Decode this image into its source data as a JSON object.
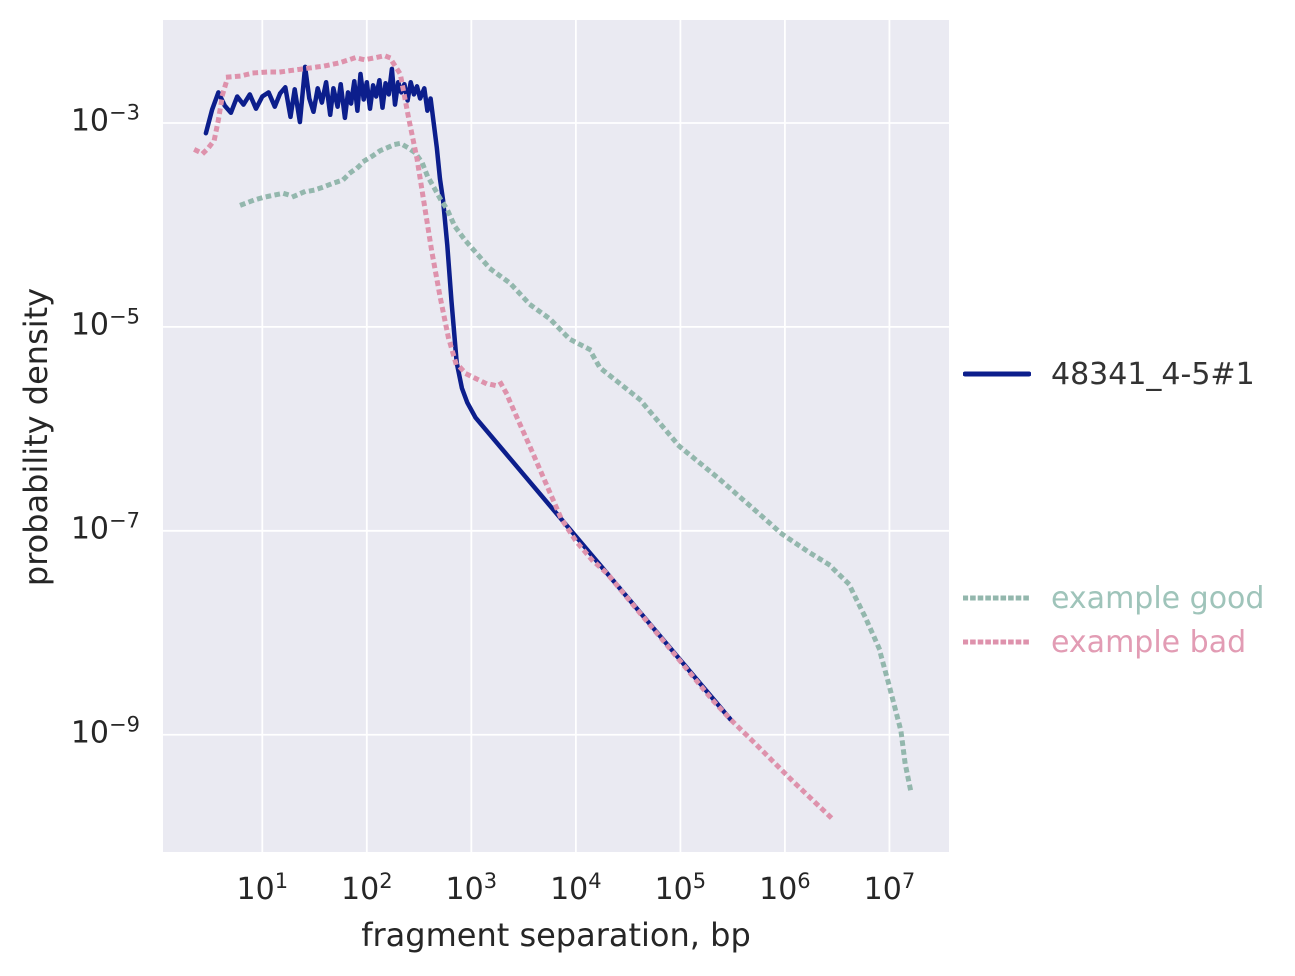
{
  "chart_data": {
    "type": "line",
    "title": "",
    "xlabel": "fragment separation, bp",
    "ylabel": "probability density",
    "x_scale": "log",
    "y_scale": "log",
    "units_note": "series points are [log10(fragment separation in bp), log10(probability density)]",
    "x_log_range": [
      0.05,
      7.57
    ],
    "y_log_range": [
      -10.15,
      -1.99
    ],
    "plot_bg": "#eaeaf2",
    "grid": {
      "color": "#ffffff",
      "x_lines_log": [
        1,
        2,
        3,
        4,
        5,
        6,
        7
      ],
      "y_lines_log": [
        -3,
        -5,
        -7,
        -9
      ]
    },
    "x_ticks": [
      {
        "base": "10",
        "exp": "1",
        "log": 1
      },
      {
        "base": "10",
        "exp": "2",
        "log": 2
      },
      {
        "base": "10",
        "exp": "3",
        "log": 3
      },
      {
        "base": "10",
        "exp": "4",
        "log": 4
      },
      {
        "base": "10",
        "exp": "5",
        "log": 5
      },
      {
        "base": "10",
        "exp": "6",
        "log": 6
      },
      {
        "base": "10",
        "exp": "7",
        "log": 7
      }
    ],
    "y_ticks": [
      {
        "base": "10",
        "exp": "−3",
        "log": -3
      },
      {
        "base": "10",
        "exp": "−5",
        "log": -5
      },
      {
        "base": "10",
        "exp": "−7",
        "log": -7
      },
      {
        "base": "10",
        "exp": "−9",
        "log": -9
      }
    ],
    "series": [
      {
        "id": "sample",
        "label": "48341_4-5#1",
        "color": "#0c1e8c",
        "label_color": "#333333",
        "style": "solid",
        "points_log10": [
          [
            0.46,
            -3.1
          ],
          [
            0.52,
            -2.87
          ],
          [
            0.58,
            -2.7
          ],
          [
            0.64,
            -2.83
          ],
          [
            0.7,
            -2.9
          ],
          [
            0.76,
            -2.74
          ],
          [
            0.82,
            -2.82
          ],
          [
            0.88,
            -2.72
          ],
          [
            0.94,
            -2.86
          ],
          [
            1.0,
            -2.74
          ],
          [
            1.06,
            -2.7
          ],
          [
            1.12,
            -2.84
          ],
          [
            1.17,
            -2.71
          ],
          [
            1.22,
            -2.65
          ],
          [
            1.27,
            -2.94
          ],
          [
            1.31,
            -2.67
          ],
          [
            1.36,
            -2.99
          ],
          [
            1.41,
            -2.45
          ],
          [
            1.45,
            -2.76
          ],
          [
            1.49,
            -2.89
          ],
          [
            1.53,
            -2.66
          ],
          [
            1.57,
            -2.8
          ],
          [
            1.61,
            -2.6
          ],
          [
            1.65,
            -2.92
          ],
          [
            1.68,
            -2.66
          ],
          [
            1.72,
            -2.84
          ],
          [
            1.75,
            -2.62
          ],
          [
            1.79,
            -2.95
          ],
          [
            1.82,
            -2.7
          ],
          [
            1.85,
            -2.81
          ],
          [
            1.88,
            -2.59
          ],
          [
            1.91,
            -2.88
          ],
          [
            1.94,
            -2.52
          ],
          [
            1.97,
            -2.77
          ],
          [
            2.0,
            -2.6
          ],
          [
            2.03,
            -2.86
          ],
          [
            2.06,
            -2.63
          ],
          [
            2.09,
            -2.74
          ],
          [
            2.12,
            -2.58
          ],
          [
            2.15,
            -2.85
          ],
          [
            2.18,
            -2.61
          ],
          [
            2.21,
            -2.72
          ],
          [
            2.24,
            -2.47
          ],
          [
            2.27,
            -2.82
          ],
          [
            2.3,
            -2.6
          ],
          [
            2.33,
            -2.7
          ],
          [
            2.36,
            -2.62
          ],
          [
            2.39,
            -2.78
          ],
          [
            2.42,
            -2.6
          ],
          [
            2.45,
            -2.72
          ],
          [
            2.48,
            -2.64
          ],
          [
            2.51,
            -2.76
          ],
          [
            2.55,
            -2.66
          ],
          [
            2.58,
            -2.88
          ],
          [
            2.61,
            -2.76
          ],
          [
            2.64,
            -3.0
          ],
          [
            2.67,
            -3.24
          ],
          [
            2.7,
            -3.55
          ],
          [
            2.73,
            -3.76
          ],
          [
            2.77,
            -4.2
          ],
          [
            2.81,
            -4.75
          ],
          [
            2.86,
            -5.35
          ],
          [
            2.91,
            -5.6
          ],
          [
            2.96,
            -5.74
          ],
          [
            3.04,
            -5.89
          ],
          [
            5.48,
            -8.85
          ]
        ]
      },
      {
        "id": "example-good",
        "label": "example good",
        "color": "#93b7ad",
        "label_color": "#9fc4ba",
        "style": "dotted",
        "points_log10": [
          [
            0.81,
            -3.8
          ],
          [
            0.91,
            -3.76
          ],
          [
            1.01,
            -3.73
          ],
          [
            1.1,
            -3.71
          ],
          [
            1.2,
            -3.69
          ],
          [
            1.3,
            -3.72
          ],
          [
            1.39,
            -3.68
          ],
          [
            1.49,
            -3.66
          ],
          [
            1.58,
            -3.63
          ],
          [
            1.68,
            -3.59
          ],
          [
            1.77,
            -3.56
          ],
          [
            1.84,
            -3.49
          ],
          [
            1.92,
            -3.43
          ],
          [
            1.98,
            -3.37
          ],
          [
            2.06,
            -3.32
          ],
          [
            2.13,
            -3.27
          ],
          [
            2.2,
            -3.24
          ],
          [
            2.27,
            -3.21
          ],
          [
            2.32,
            -3.2
          ],
          [
            2.39,
            -3.24
          ],
          [
            2.46,
            -3.29
          ],
          [
            2.53,
            -3.39
          ],
          [
            2.58,
            -3.52
          ],
          [
            2.63,
            -3.61
          ],
          [
            2.7,
            -3.74
          ],
          [
            2.77,
            -3.85
          ],
          [
            2.84,
            -4.01
          ],
          [
            2.94,
            -4.15
          ],
          [
            3.06,
            -4.29
          ],
          [
            3.18,
            -4.43
          ],
          [
            3.37,
            -4.57
          ],
          [
            3.56,
            -4.78
          ],
          [
            3.75,
            -4.92
          ],
          [
            3.94,
            -5.12
          ],
          [
            4.13,
            -5.22
          ],
          [
            4.23,
            -5.4
          ],
          [
            4.61,
            -5.71
          ],
          [
            4.99,
            -6.17
          ],
          [
            5.37,
            -6.49
          ],
          [
            5.75,
            -6.83
          ],
          [
            5.97,
            -7.03
          ],
          [
            6.23,
            -7.21
          ],
          [
            6.42,
            -7.33
          ],
          [
            6.61,
            -7.52
          ],
          [
            6.77,
            -7.85
          ],
          [
            6.9,
            -8.15
          ],
          [
            6.99,
            -8.49
          ],
          [
            7.11,
            -8.96
          ],
          [
            7.15,
            -9.28
          ],
          [
            7.2,
            -9.53
          ]
        ]
      },
      {
        "id": "example-bad",
        "label": "example bad",
        "color": "#de92ac",
        "label_color": "#e29cb4",
        "style": "dotted",
        "points_log10": [
          [
            0.37,
            -3.27
          ],
          [
            0.43,
            -3.3
          ],
          [
            0.48,
            -3.25
          ],
          [
            0.54,
            -3.17
          ],
          [
            0.58,
            -2.97
          ],
          [
            0.62,
            -2.72
          ],
          [
            0.67,
            -2.55
          ],
          [
            0.79,
            -2.54
          ],
          [
            0.91,
            -2.51
          ],
          [
            1.05,
            -2.5
          ],
          [
            1.17,
            -2.5
          ],
          [
            1.31,
            -2.48
          ],
          [
            1.46,
            -2.46
          ],
          [
            1.6,
            -2.44
          ],
          [
            1.74,
            -2.41
          ],
          [
            1.89,
            -2.36
          ],
          [
            1.98,
            -2.38
          ],
          [
            2.08,
            -2.36
          ],
          [
            2.17,
            -2.34
          ],
          [
            2.22,
            -2.36
          ],
          [
            2.32,
            -2.52
          ],
          [
            2.4,
            -2.95
          ],
          [
            2.48,
            -3.35
          ],
          [
            2.55,
            -3.8
          ],
          [
            2.62,
            -4.25
          ],
          [
            2.7,
            -4.7
          ],
          [
            2.78,
            -5.1
          ],
          [
            2.85,
            -5.35
          ],
          [
            2.95,
            -5.46
          ],
          [
            3.05,
            -5.51
          ],
          [
            3.13,
            -5.55
          ],
          [
            3.21,
            -5.57
          ],
          [
            3.28,
            -5.55
          ],
          [
            3.33,
            -5.64
          ],
          [
            3.45,
            -5.92
          ],
          [
            3.58,
            -6.22
          ],
          [
            3.72,
            -6.55
          ],
          [
            3.86,
            -6.88
          ],
          [
            4.0,
            -7.1
          ],
          [
            4.15,
            -7.28
          ],
          [
            4.3,
            -7.42
          ],
          [
            4.6,
            -7.79
          ],
          [
            4.96,
            -8.23
          ],
          [
            5.3,
            -8.65
          ],
          [
            5.48,
            -8.85
          ],
          [
            5.7,
            -9.07
          ],
          [
            6.07,
            -9.45
          ],
          [
            6.45,
            -9.82
          ]
        ]
      }
    ]
  }
}
